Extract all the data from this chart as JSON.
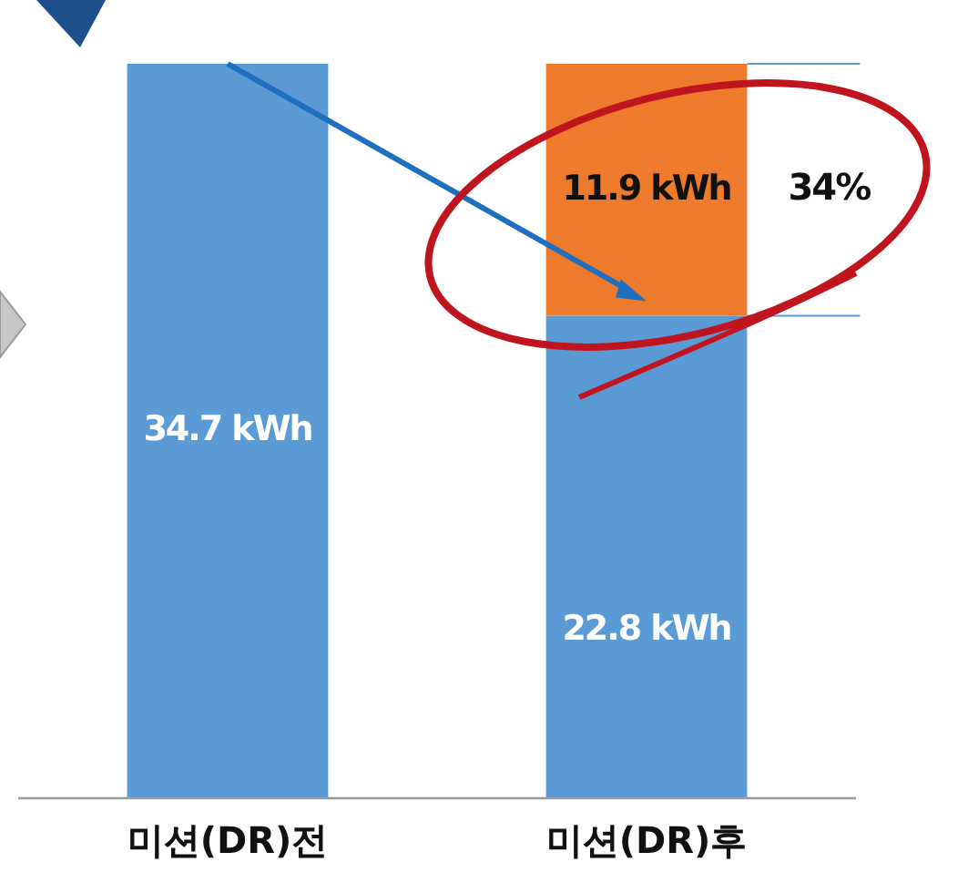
{
  "chart_data": {
    "type": "bar",
    "stacked": true,
    "categories": [
      "미션(DR)전",
      "미션(DR)후"
    ],
    "series": [
      {
        "color": "#5b9bd5",
        "values": [
          34.7,
          22.8
        ],
        "value_labels": [
          "34.7 kWh",
          "22.8 kWh"
        ]
      },
      {
        "color": "#ee7a2c",
        "values": [
          null,
          11.9
        ],
        "value_labels": [
          null,
          "11.9 kWh"
        ]
      }
    ],
    "annotations": [
      "34%"
    ],
    "tick_labels": "x",
    "grid": false
  }
}
